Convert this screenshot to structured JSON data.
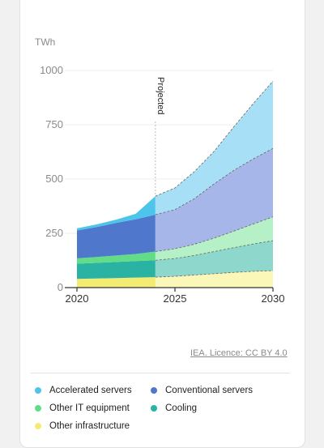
{
  "chart_data": {
    "type": "area",
    "stacked": true,
    "unit_label": "TWh",
    "projected_label": "Projected",
    "x_ticks": [
      "2020",
      "2025",
      "2030"
    ],
    "y_ticks": [
      "0",
      "250",
      "500",
      "750",
      "1000"
    ],
    "ylim": [
      0,
      1000
    ],
    "xlim": [
      2020,
      2030
    ],
    "projection_start": 2024,
    "x": [
      2020,
      2021,
      2022,
      2023,
      2024,
      2025,
      2026,
      2027,
      2028,
      2029,
      2030
    ],
    "series": [
      {
        "name": "Other infrastructure",
        "color": "#f3ec72",
        "proj_color": "#fbf7b8",
        "values": [
          40,
          42,
          44,
          46,
          48,
          52,
          58,
          64,
          70,
          75,
          78
        ]
      },
      {
        "name": "Cooling",
        "color": "#2ab3a3",
        "proj_color": "#8ed7cd",
        "values": [
          70,
          72,
          74,
          76,
          78,
          82,
          90,
          102,
          114,
          126,
          138
        ]
      },
      {
        "name": "Other IT equipment",
        "color": "#62dc86",
        "proj_color": "#b5f0c6",
        "values": [
          25,
          27,
          30,
          33,
          40,
          45,
          52,
          62,
          76,
          92,
          110
        ]
      },
      {
        "name": "Conventional servers",
        "color": "#4f78cc",
        "proj_color": "#a6b6e8",
        "values": [
          128,
          138,
          150,
          160,
          170,
          180,
          210,
          250,
          280,
          300,
          315
        ]
      },
      {
        "name": "Accelerated servers",
        "color": "#4dc5ea",
        "proj_color": "#a7e0f6",
        "values": [
          10,
          12,
          15,
          25,
          85,
          100,
          125,
          150,
          200,
          255,
          310
        ]
      }
    ],
    "legend_position": "bottom"
  },
  "source_text": "IEA. Licence: CC BY 4.0"
}
